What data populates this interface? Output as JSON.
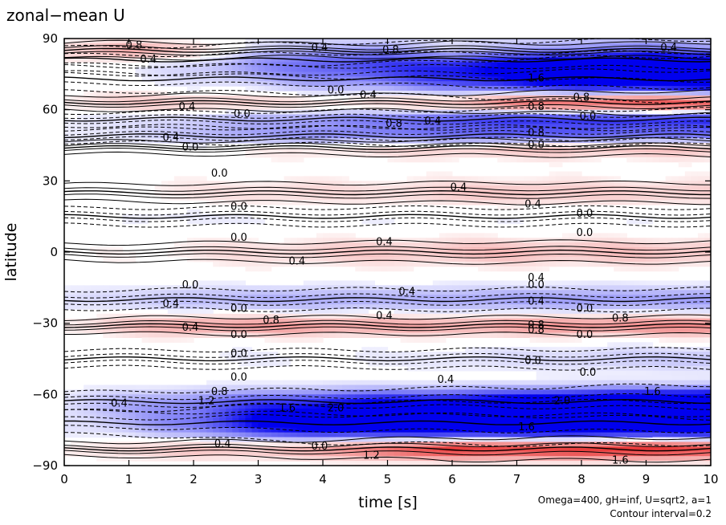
{
  "chart_data": {
    "type": "heatmap",
    "title": "zonal−mean U",
    "xlabel": "time [s]",
    "ylabel": "latitude",
    "xlim": [
      0,
      10
    ],
    "ylim": [
      -90,
      90
    ],
    "x_ticks": [
      "0",
      "1",
      "2",
      "3",
      "4",
      "5",
      "6",
      "7",
      "8",
      "9",
      "10"
    ],
    "y_ticks": [
      "90",
      "60",
      "30",
      "0",
      "−30",
      "−60",
      "−90"
    ],
    "y_tick_values": [
      90,
      60,
      30,
      0,
      -30,
      -60,
      -90
    ],
    "contour_interval": 0.2,
    "positive_color": "#e83a3a",
    "negative_color": "#0000ee",
    "bands": [
      {
        "lat": 85,
        "width": 3,
        "sign": 1,
        "t": [
          0,
          1,
          2,
          3,
          4,
          5,
          6,
          7,
          8,
          9,
          10
        ],
        "v": [
          0.3,
          0.8,
          0.6,
          0.2,
          0.1,
          0.1,
          0.5,
          0.3,
          0.3,
          0.2,
          0.5
        ]
      },
      {
        "lat": 81,
        "width": 6,
        "sign": -1,
        "t": [
          0,
          1,
          2,
          3,
          4,
          5,
          6,
          7,
          8,
          9,
          10
        ],
        "v": [
          0.0,
          0.1,
          0.3,
          0.6,
          0.8,
          0.9,
          0.9,
          1.0,
          1.2,
          1.3,
          1.4
        ]
      },
      {
        "lat": 73,
        "width": 6,
        "sign": -1,
        "t": [
          0,
          1,
          2,
          3,
          4,
          5,
          6,
          7,
          8,
          9,
          10
        ],
        "v": [
          0.0,
          0.0,
          0.1,
          0.2,
          0.4,
          0.6,
          0.9,
          1.3,
          1.6,
          1.7,
          1.8
        ]
      },
      {
        "lat": 63,
        "width": 3,
        "sign": 1,
        "t": [
          0,
          1,
          2,
          3,
          4,
          5,
          6,
          7,
          8,
          9,
          10
        ],
        "v": [
          0.2,
          0.4,
          0.5,
          0.4,
          0.4,
          0.5,
          0.8,
          1.4,
          1.6,
          1.8,
          1.8
        ]
      },
      {
        "lat": 56,
        "width": 3,
        "sign": -1,
        "t": [
          0,
          1,
          2,
          3,
          4,
          5,
          6,
          7,
          8,
          9,
          10
        ],
        "v": [
          0.1,
          0.2,
          0.3,
          0.5,
          0.6,
          0.8,
          1.0,
          1.2,
          1.2,
          1.2,
          1.3
        ]
      },
      {
        "lat": 49,
        "width": 3,
        "sign": -1,
        "t": [
          0,
          1,
          2,
          3,
          4,
          5,
          6,
          7,
          8,
          9,
          10
        ],
        "v": [
          0.1,
          0.2,
          0.4,
          0.6,
          0.7,
          0.8,
          0.9,
          1.0,
          1.0,
          0.9,
          0.9
        ]
      },
      {
        "lat": 44,
        "width": 3,
        "sign": 1,
        "t": [
          0,
          1,
          2,
          3,
          4,
          5,
          6,
          7,
          8,
          9,
          10
        ],
        "v": [
          0.0,
          0.0,
          0.1,
          0.2,
          0.3,
          0.4,
          0.5,
          0.6,
          0.6,
          0.6,
          0.6
        ]
      },
      {
        "lat": 25,
        "width": 4,
        "sign": 1,
        "t": [
          0,
          1,
          2,
          3,
          4,
          5,
          6,
          7,
          8,
          9,
          10
        ],
        "v": [
          0.0,
          0.1,
          0.2,
          0.3,
          0.3,
          0.3,
          0.4,
          0.5,
          0.4,
          0.4,
          0.4
        ]
      },
      {
        "lat": 15,
        "width": 4,
        "sign": -1,
        "t": [
          0,
          1,
          2,
          3,
          4,
          5,
          6,
          7,
          8,
          9,
          10
        ],
        "v": [
          0.0,
          0.1,
          0.15,
          0.1,
          0.1,
          0.1,
          0.1,
          0.1,
          0.1,
          0.1,
          0.1
        ]
      },
      {
        "lat": 0,
        "width": 4,
        "sign": 1,
        "t": [
          0,
          1,
          2,
          3,
          4,
          5,
          6,
          7,
          8,
          9,
          10
        ],
        "v": [
          0.0,
          0.1,
          0.2,
          0.3,
          0.4,
          0.45,
          0.5,
          0.55,
          0.5,
          0.5,
          0.5
        ]
      },
      {
        "lat": -20,
        "width": 4,
        "sign": -1,
        "t": [
          0,
          1,
          2,
          3,
          4,
          5,
          6,
          7,
          8,
          9,
          10
        ],
        "v": [
          0.2,
          0.3,
          0.4,
          0.5,
          0.5,
          0.5,
          0.5,
          0.6,
          0.6,
          0.6,
          0.6
        ]
      },
      {
        "lat": -31,
        "width": 3,
        "sign": 1,
        "t": [
          0,
          1,
          2,
          3,
          4,
          5,
          6,
          7,
          8,
          9,
          10
        ],
        "v": [
          0.2,
          0.5,
          0.8,
          0.8,
          0.8,
          0.7,
          0.7,
          0.8,
          0.9,
          0.9,
          1.0
        ]
      },
      {
        "lat": -45,
        "width": 4,
        "sign": -1,
        "t": [
          0,
          1,
          2,
          3,
          4,
          5,
          6,
          7,
          8,
          9,
          10
        ],
        "v": [
          0.0,
          0.0,
          0.1,
          0.1,
          0.1,
          0.1,
          0.2,
          0.2,
          0.3,
          0.3,
          0.4
        ]
      },
      {
        "lat": -63,
        "width": 4,
        "sign": -1,
        "t": [
          0,
          1,
          2,
          3,
          4,
          5,
          6,
          7,
          8,
          9,
          10
        ],
        "v": [
          0.2,
          0.4,
          0.6,
          0.8,
          1.0,
          1.2,
          1.3,
          1.5,
          1.8,
          2.0,
          2.2
        ]
      },
      {
        "lat": -72,
        "width": 5,
        "sign": -1,
        "t": [
          0,
          1,
          2,
          3,
          4,
          5,
          6,
          7,
          8,
          9,
          10
        ],
        "v": [
          0.2,
          0.4,
          0.8,
          1.6,
          2.0,
          2.2,
          2.2,
          2.4,
          2.4,
          2.3,
          2.3
        ]
      },
      {
        "lat": -83,
        "width": 3,
        "sign": 1,
        "t": [
          0,
          1,
          2,
          3,
          4,
          5,
          6,
          7,
          8,
          9,
          10
        ],
        "v": [
          0.2,
          0.3,
          0.6,
          0.5,
          0.9,
          1.3,
          1.8,
          1.6,
          1.8,
          1.8,
          1.6
        ]
      }
    ],
    "contour_labels": [
      {
        "text": "0.8",
        "x": 1.08,
        "y": 87
      },
      {
        "text": "0.4",
        "x": 1.3,
        "y": 81
      },
      {
        "text": "0.4",
        "x": 3.95,
        "y": 86
      },
      {
        "text": "0.8",
        "x": 5.05,
        "y": 85
      },
      {
        "text": "1.6",
        "x": 7.3,
        "y": 73
      },
      {
        "text": "0.4",
        "x": 9.35,
        "y": 86
      },
      {
        "text": "0.0",
        "x": 4.2,
        "y": 68
      },
      {
        "text": "0.4",
        "x": 4.7,
        "y": 66
      },
      {
        "text": "0.4",
        "x": 1.9,
        "y": 61
      },
      {
        "text": "0.0",
        "x": 2.75,
        "y": 58
      },
      {
        "text": "0.8",
        "x": 7.3,
        "y": 61
      },
      {
        "text": "0.8",
        "x": 8.0,
        "y": 65
      },
      {
        "text": "0.0",
        "x": 8.1,
        "y": 57
      },
      {
        "text": "0.8",
        "x": 5.1,
        "y": 54
      },
      {
        "text": "0.4",
        "x": 5.7,
        "y": 55
      },
      {
        "text": "0.8",
        "x": 7.3,
        "y": 50
      },
      {
        "text": "0.0",
        "x": 7.3,
        "y": 45
      },
      {
        "text": "0.4",
        "x": 1.65,
        "y": 48
      },
      {
        "text": "0.0",
        "x": 1.95,
        "y": 44
      },
      {
        "text": "0.0",
        "x": 2.4,
        "y": 33
      },
      {
        "text": "0.4",
        "x": 6.1,
        "y": 27
      },
      {
        "text": "0.0",
        "x": 2.7,
        "y": 19
      },
      {
        "text": "0.4",
        "x": 7.25,
        "y": 20
      },
      {
        "text": "0.0",
        "x": 8.05,
        "y": 16
      },
      {
        "text": "0.0",
        "x": 2.7,
        "y": 6
      },
      {
        "text": "0.0",
        "x": 8.05,
        "y": 8
      },
      {
        "text": "0.4",
        "x": 4.95,
        "y": 4
      },
      {
        "text": "0.4",
        "x": 3.6,
        "y": -4
      },
      {
        "text": "0.0",
        "x": 1.95,
        "y": -14
      },
      {
        "text": "0.4",
        "x": 5.3,
        "y": -17
      },
      {
        "text": "0.4",
        "x": 7.3,
        "y": -11
      },
      {
        "text": "0.0",
        "x": 7.3,
        "y": -14
      },
      {
        "text": "0.4",
        "x": 1.65,
        "y": -22
      },
      {
        "text": "0.0",
        "x": 2.7,
        "y": -24
      },
      {
        "text": "0.4",
        "x": 7.3,
        "y": -21
      },
      {
        "text": "0.0",
        "x": 8.05,
        "y": -24
      },
      {
        "text": "0.8",
        "x": 3.2,
        "y": -29
      },
      {
        "text": "0.4",
        "x": 4.95,
        "y": -27
      },
      {
        "text": "0.8",
        "x": 8.6,
        "y": -28
      },
      {
        "text": "0.4",
        "x": 1.95,
        "y": -32
      },
      {
        "text": "0.0",
        "x": 2.7,
        "y": -35
      },
      {
        "text": "0.8",
        "x": 7.3,
        "y": -31
      },
      {
        "text": "0.8",
        "x": 7.3,
        "y": -33
      },
      {
        "text": "0.0",
        "x": 8.05,
        "y": -35
      },
      {
        "text": "0.0",
        "x": 2.7,
        "y": -43
      },
      {
        "text": "0.0",
        "x": 7.25,
        "y": -46
      },
      {
        "text": "0.0",
        "x": 2.7,
        "y": -53
      },
      {
        "text": "0.4",
        "x": 5.9,
        "y": -54
      },
      {
        "text": "0.0",
        "x": 8.1,
        "y": -51
      },
      {
        "text": "0.8",
        "x": 2.4,
        "y": -59
      },
      {
        "text": "1.2",
        "x": 2.2,
        "y": -63
      },
      {
        "text": "0.4",
        "x": 0.85,
        "y": -64
      },
      {
        "text": "1.6",
        "x": 3.45,
        "y": -66
      },
      {
        "text": "2.0",
        "x": 4.2,
        "y": -66
      },
      {
        "text": "2.0",
        "x": 7.7,
        "y": -63
      },
      {
        "text": "1.6",
        "x": 7.15,
        "y": -74
      },
      {
        "text": "1.6",
        "x": 9.1,
        "y": -59
      },
      {
        "text": "0.4",
        "x": 2.45,
        "y": -81
      },
      {
        "text": "0.0",
        "x": 3.95,
        "y": -82
      },
      {
        "text": "1.2",
        "x": 4.75,
        "y": -86
      },
      {
        "text": "1.6",
        "x": 8.6,
        "y": -88
      }
    ]
  },
  "annotation": {
    "line1": "Omega=400, gH=inf, U=sqrt2, a=1",
    "line2": "Contour interval=0.2"
  }
}
